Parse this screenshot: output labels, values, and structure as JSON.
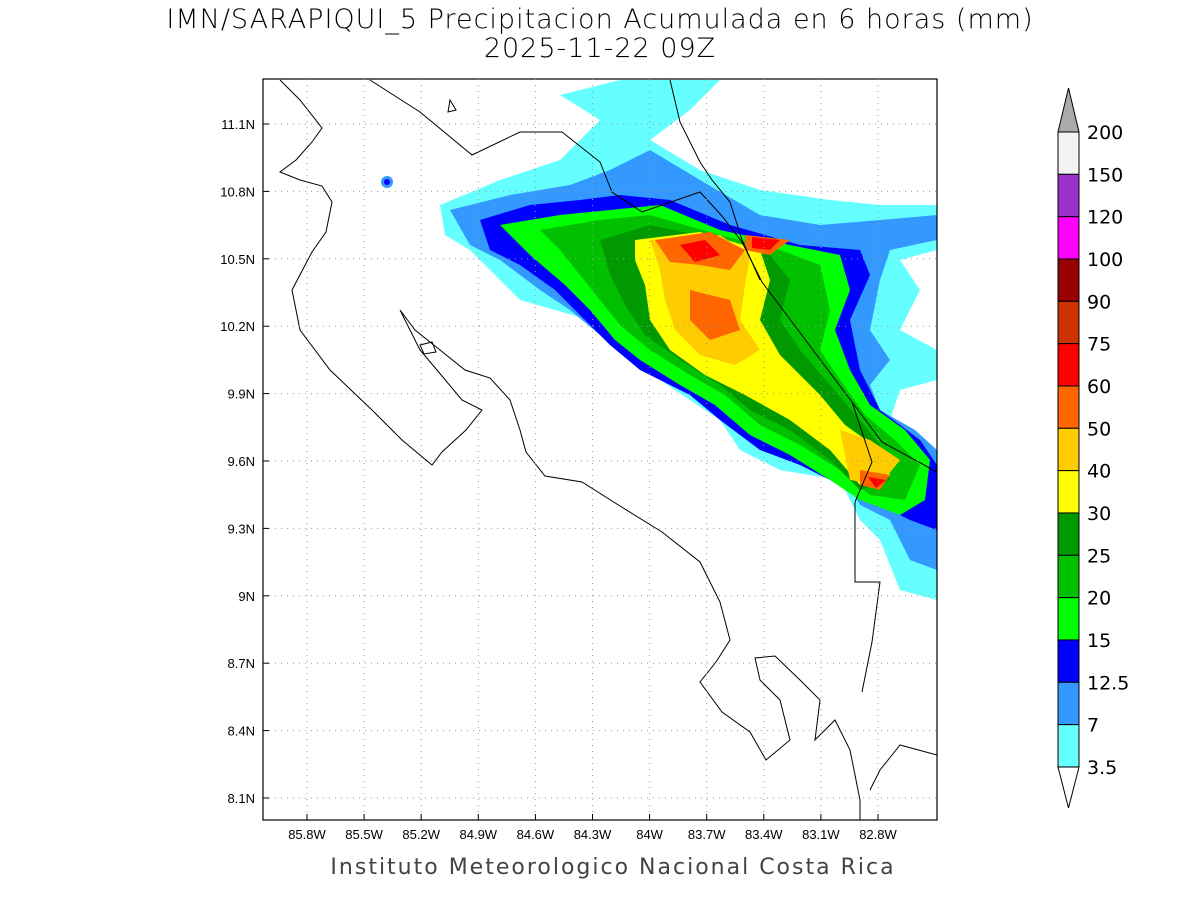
{
  "title": {
    "line1": "IMN/SARAPIQUI_5 Precipitacion Acumulada en 6 horas (mm)",
    "line2": "2025-11-22 09Z"
  },
  "footer": "Instituto Meteorologico Nacional Costa Rica",
  "map": {
    "lat_ticks": [
      "11.1N",
      "10.8N",
      "10.5N",
      "10.2N",
      "9.9N",
      "9.6N",
      "9.3N",
      "9N",
      "8.7N",
      "8.4N",
      "8.1N"
    ],
    "lon_ticks": [
      "85.8W",
      "85.5W",
      "85.2W",
      "84.9W",
      "84.6W",
      "84.3W",
      "84W",
      "83.7W",
      "83.4W",
      "83.1W",
      "82.8W"
    ],
    "grid": true
  },
  "colorbar": {
    "levels": [
      "200",
      "150",
      "120",
      "100",
      "90",
      "75",
      "60",
      "50",
      "40",
      "30",
      "25",
      "20",
      "15",
      "12.5",
      "7",
      "3.5"
    ],
    "colors": [
      "#f2f2f2",
      "#9933cc",
      "#ff00ff",
      "#990000",
      "#cc3300",
      "#ff0000",
      "#ff6600",
      "#ffcc00",
      "#ffff00",
      "#009900",
      "#00c000",
      "#00ff00",
      "#0000ff",
      "#3399ff",
      "#66ffff"
    ],
    "over_color": "#aaaaaa",
    "under_color": "#ffffff"
  }
}
